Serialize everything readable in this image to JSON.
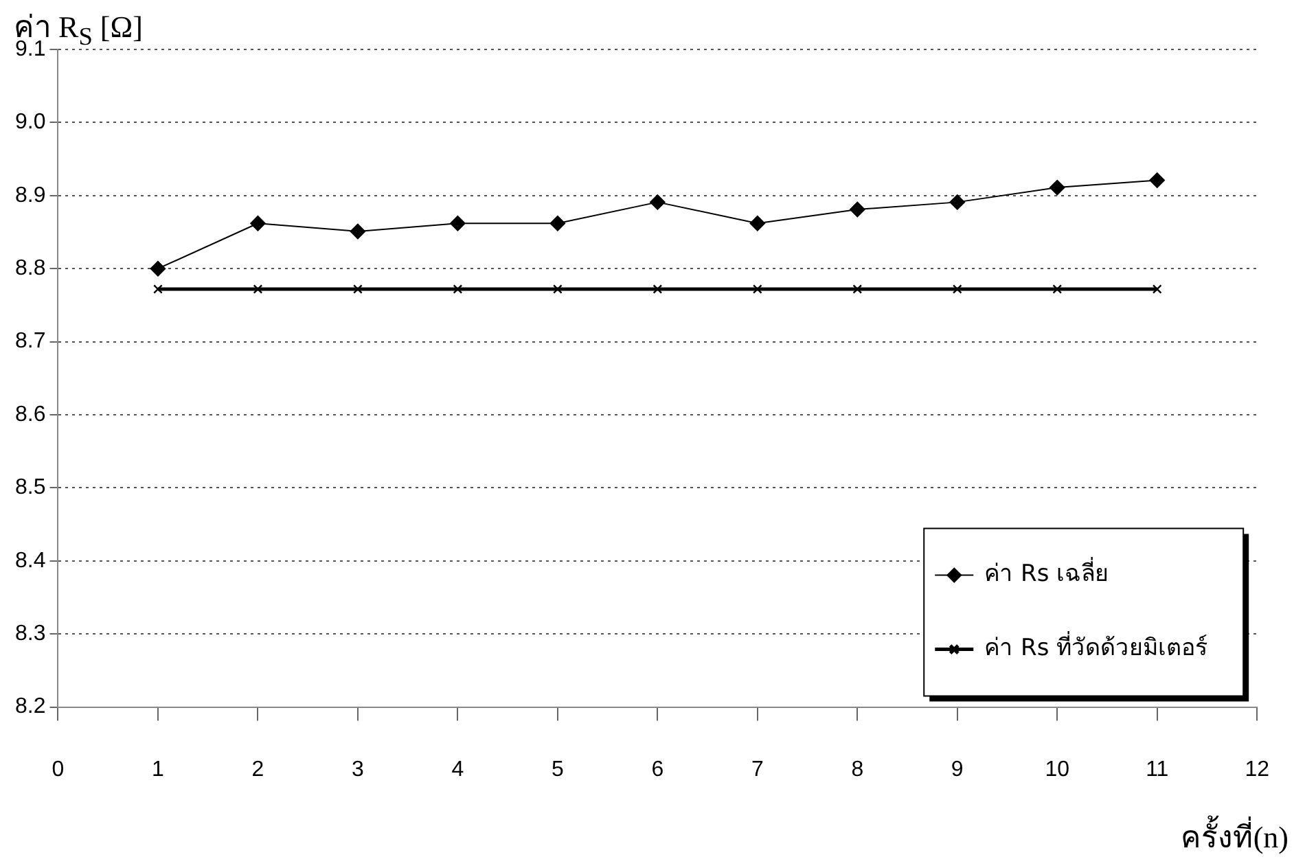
{
  "chart_data": {
    "type": "line",
    "xlabel": "ครั้งที่(n)",
    "ylabel": "ค่า R$_{S}$ [Ω]",
    "x": [
      1,
      2,
      3,
      4,
      5,
      6,
      7,
      8,
      9,
      10,
      11
    ],
    "series": [
      {
        "name": "ค่า Rs เฉลี่ย",
        "color": "#000000",
        "marker": "diamond",
        "values": [
          8.8,
          8.862,
          8.851,
          8.862,
          8.862,
          8.891,
          8.862,
          8.881,
          8.891,
          8.911,
          8.921
        ]
      },
      {
        "name": "ค่า Rs ที่วัดด้วยมิเตอร์",
        "color": "#000000",
        "marker": "cross",
        "values": [
          8.772,
          8.772,
          8.772,
          8.772,
          8.772,
          8.772,
          8.772,
          8.772,
          8.772,
          8.772,
          8.772
        ]
      }
    ],
    "xlim": [
      0,
      12
    ],
    "xticks": [
      0,
      1,
      2,
      3,
      4,
      5,
      6,
      7,
      8,
      9,
      10,
      11,
      12
    ],
    "ylim": [
      8.2,
      9.1
    ],
    "yticks": [
      8.2,
      8.3,
      8.4,
      8.5,
      8.6,
      8.7,
      8.8,
      8.9,
      {
        "value": 9,
        "label": "9.0"
      },
      9.1
    ],
    "grid": "y",
    "legend": "bottom right",
    "line_style": "solid"
  }
}
